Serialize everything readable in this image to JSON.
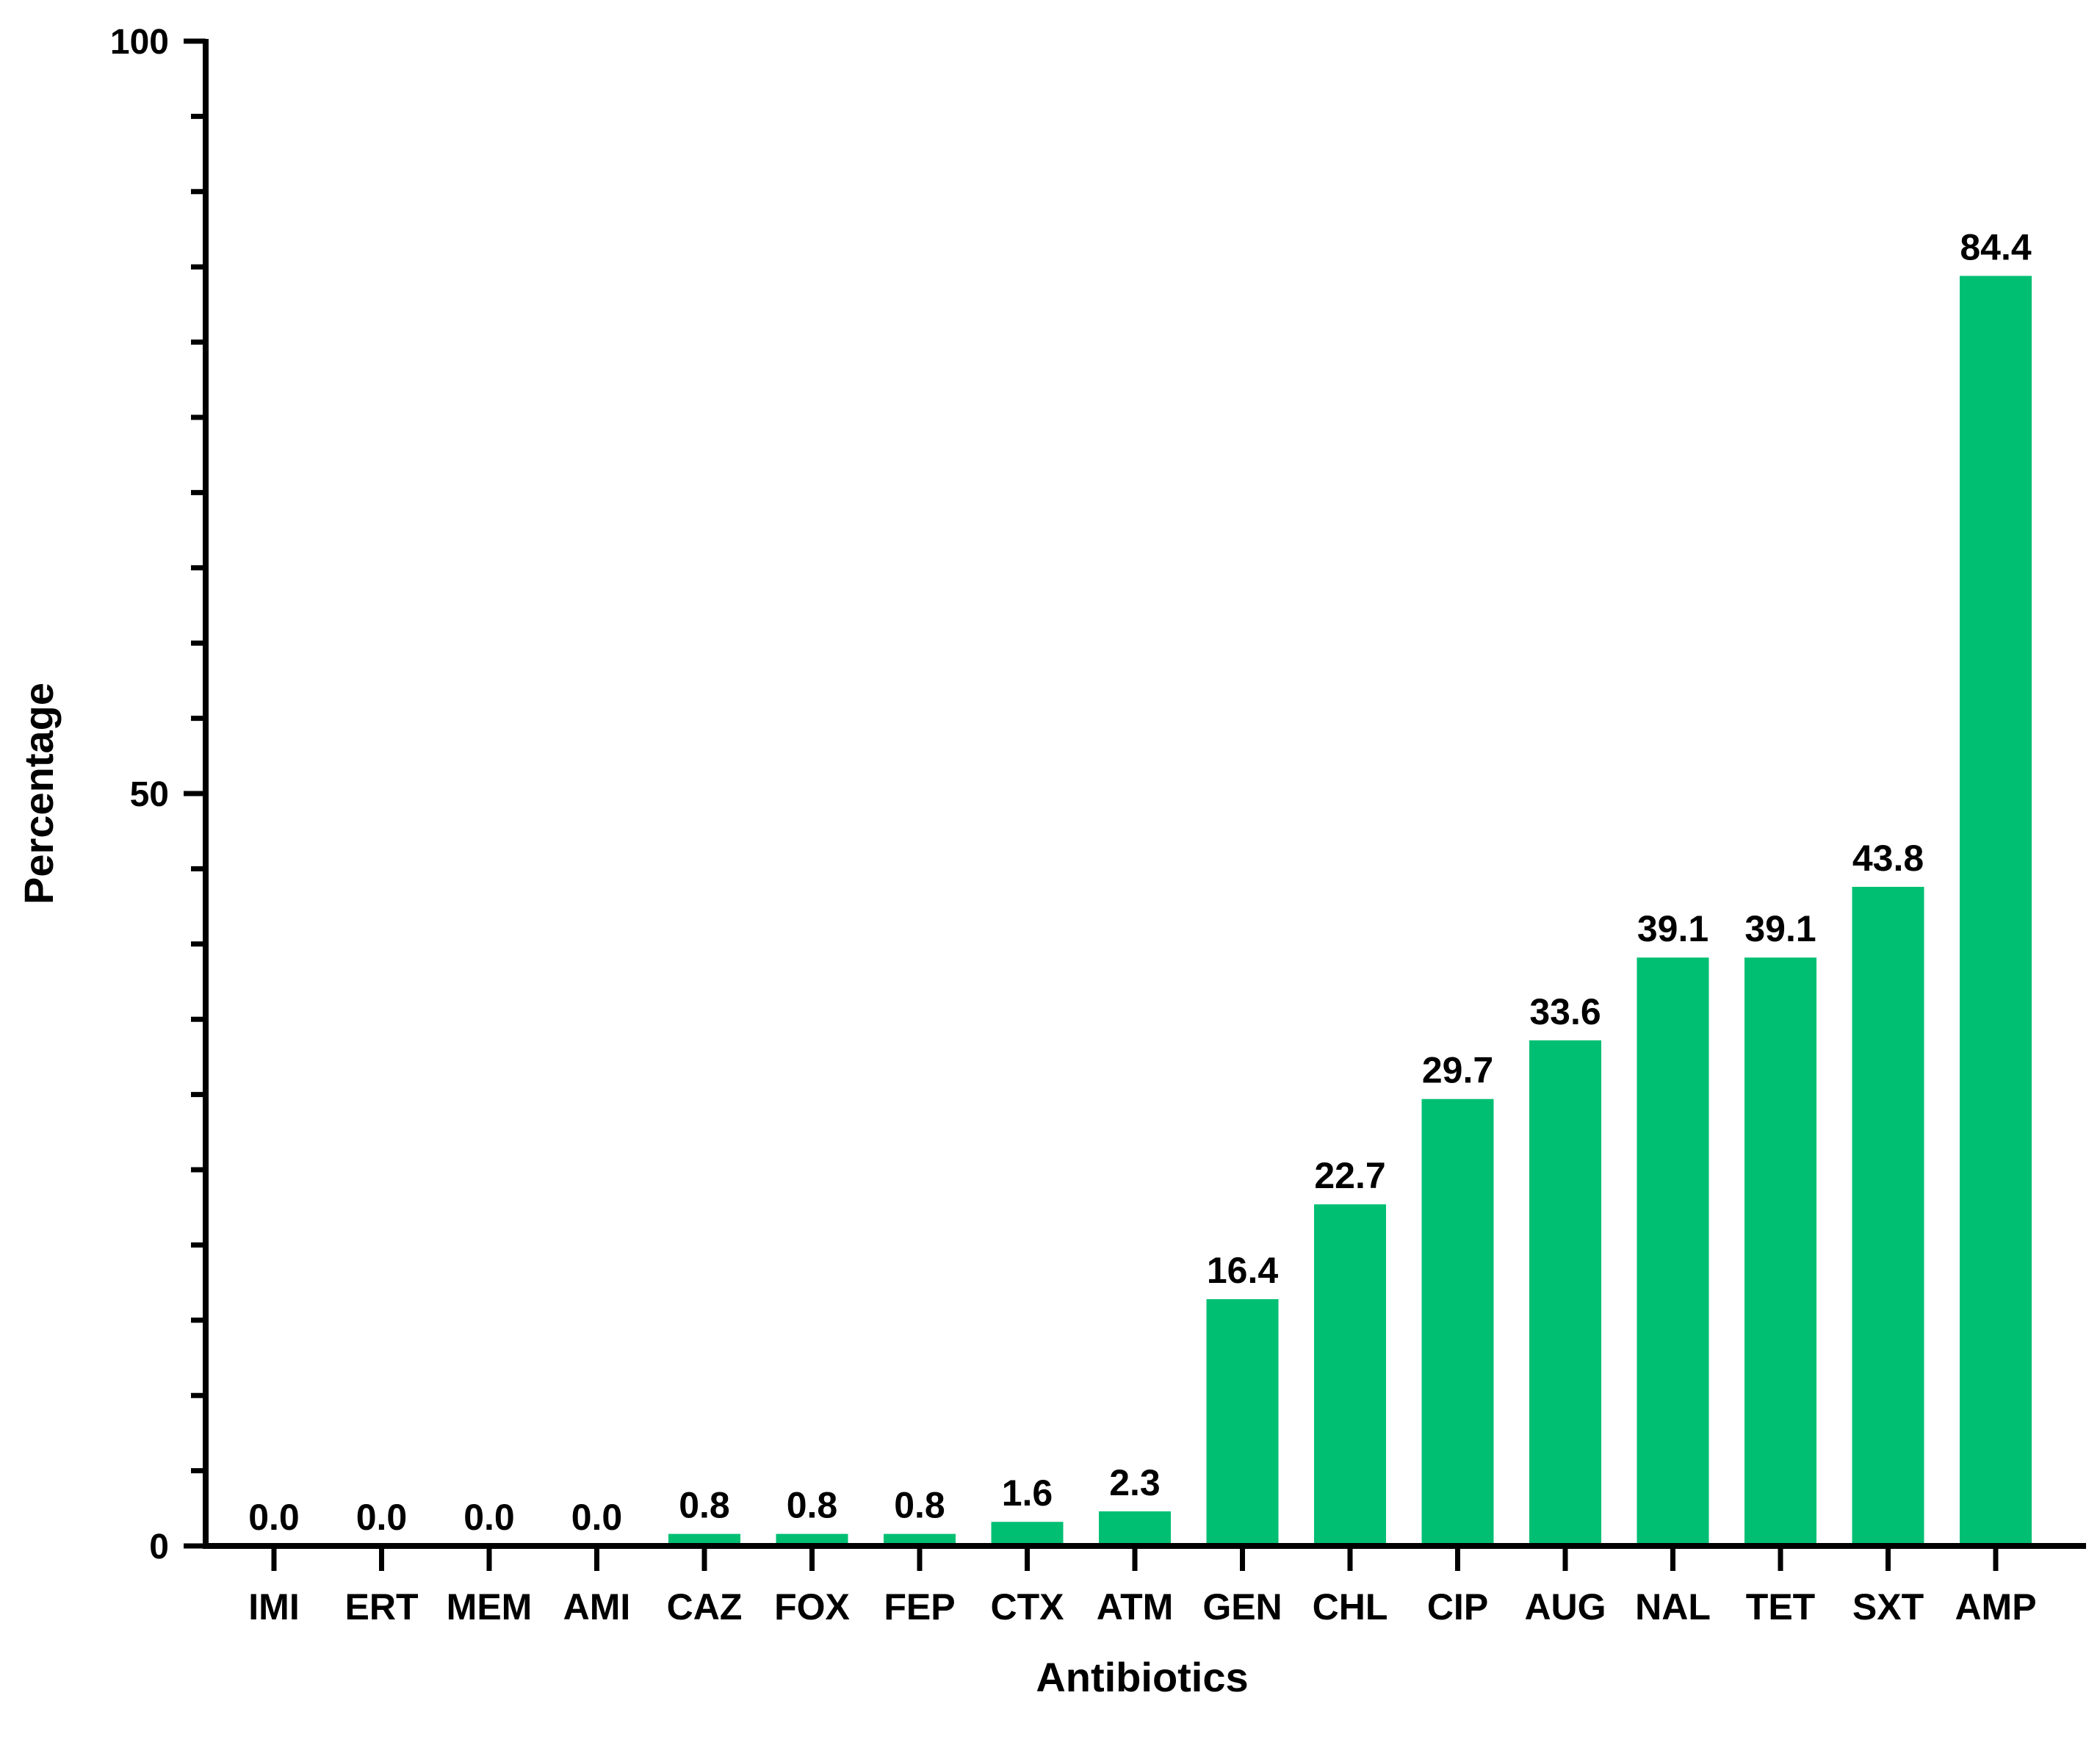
{
  "chart_data": {
    "type": "bar",
    "xlabel": "Antibiotics",
    "ylabel": "Percentage",
    "ylim": [
      0,
      100
    ],
    "yticks_major": [
      0,
      50,
      100
    ],
    "yticks_minor_step": 5,
    "grid": false,
    "bar_color": "#00BF73",
    "categories": [
      "IMI",
      "ERT",
      "MEM",
      "AMI",
      "CAZ",
      "FOX",
      "FEP",
      "CTX",
      "ATM",
      "GEN",
      "CHL",
      "CIP",
      "AUG",
      "NAL",
      "TET",
      "SXT",
      "AMP"
    ],
    "values": [
      0.0,
      0.0,
      0.0,
      0.0,
      0.8,
      0.8,
      0.8,
      1.6,
      2.3,
      16.4,
      22.7,
      29.7,
      33.6,
      39.1,
      39.1,
      43.8,
      84.4
    ],
    "value_labels": [
      "0.0",
      "0.0",
      "0.0",
      "0.0",
      "0.8",
      "0.8",
      "0.8",
      "1.6",
      "2.3",
      "16.4",
      "22.7",
      "29.7",
      "33.6",
      "39.1",
      "39.1",
      "43.8",
      "84.4"
    ]
  }
}
